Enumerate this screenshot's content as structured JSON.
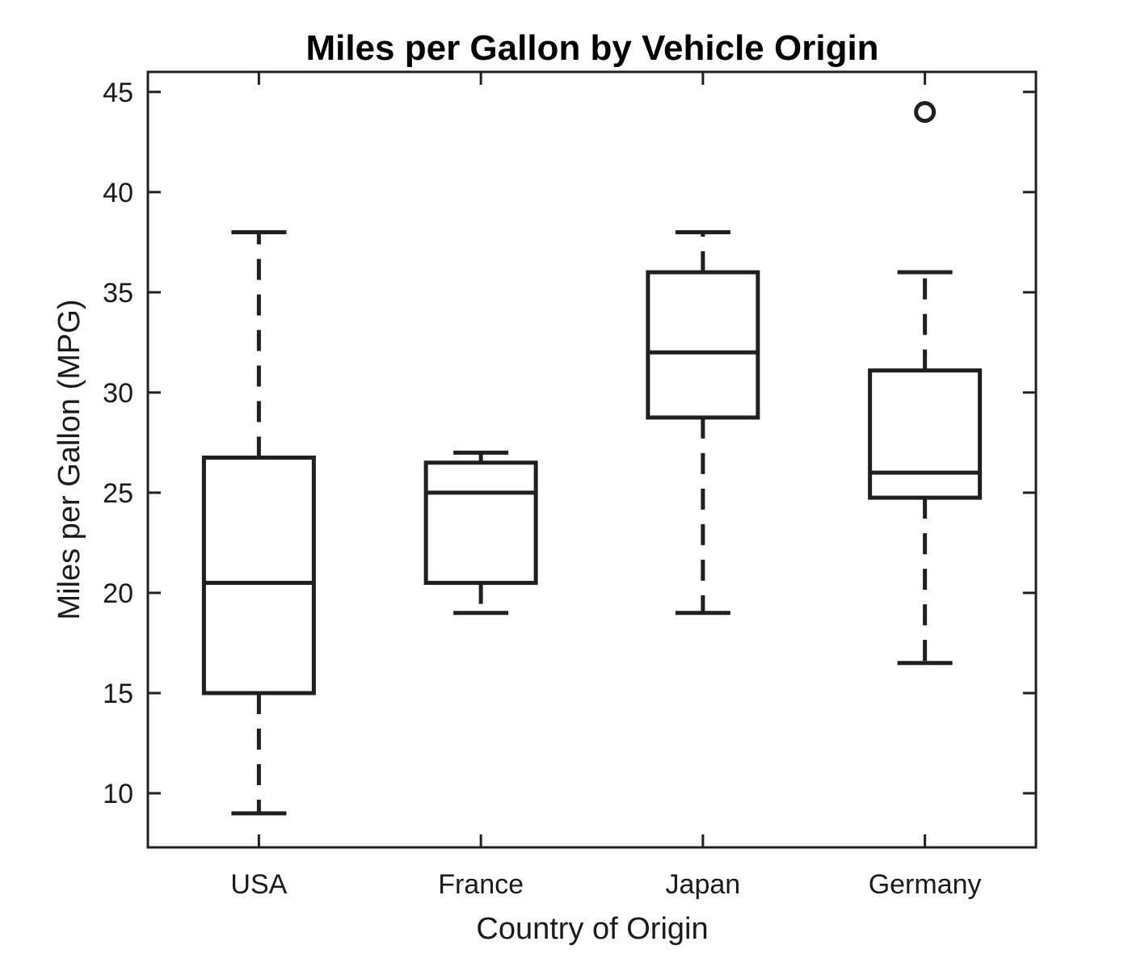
{
  "chart_data": {
    "type": "box",
    "title": "Miles per Gallon by Vehicle Origin",
    "xlabel": "Country of Origin",
    "ylabel": "Miles per Gallon (MPG)",
    "ylim": [
      7.3,
      46
    ],
    "yticks": [
      10,
      15,
      20,
      25,
      30,
      35,
      40,
      45
    ],
    "categories": [
      "USA",
      "France",
      "Japan",
      "Germany"
    ],
    "boxes": [
      {
        "category": "USA",
        "whisker_low": 9,
        "q1": 15,
        "median": 20.5,
        "q3": 26.75,
        "whisker_high": 38,
        "outliers": []
      },
      {
        "category": "France",
        "whisker_low": 19,
        "q1": 20.5,
        "median": 25,
        "q3": 26.5,
        "whisker_high": 27,
        "outliers": []
      },
      {
        "category": "Japan",
        "whisker_low": 19,
        "q1": 28.75,
        "median": 32,
        "q3": 36,
        "whisker_high": 38,
        "outliers": []
      },
      {
        "category": "Germany",
        "whisker_low": 16.5,
        "q1": 24.75,
        "median": 26,
        "q3": 31.1,
        "whisker_high": 36,
        "outliers": [
          44
        ]
      }
    ],
    "grid": false,
    "colors": {
      "box": "#1f1f1f",
      "axes": "#1f1f1f",
      "text": "#1a1a1a"
    }
  }
}
